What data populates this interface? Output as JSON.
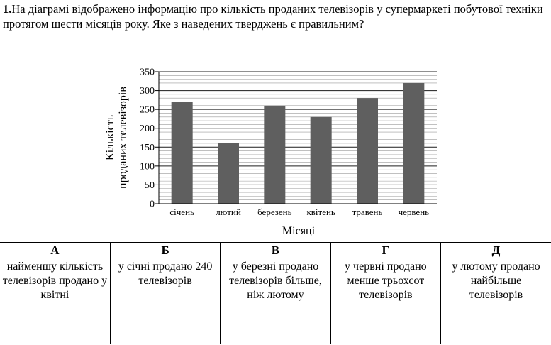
{
  "question": {
    "number": "1.",
    "text": "На діаграмі відображено інформацію про кількість проданих телевізорів у супермаркеті побутової техніки протягом шести місяців року. Яке з наведених тверджень є правильним?"
  },
  "chart_data": {
    "type": "bar",
    "categories": [
      "січень",
      "лютий",
      "березень",
      "квітень",
      "травень",
      "червень"
    ],
    "values": [
      270,
      160,
      260,
      230,
      280,
      320
    ],
    "xlabel": "Місяці",
    "ylabel_line1": "Кількість",
    "ylabel_line2": "проданих телевізорів",
    "ylim": [
      0,
      350
    ],
    "yticks": [
      0,
      50,
      100,
      150,
      200,
      250,
      300,
      350
    ],
    "minor_grid_step": 10,
    "bar_color": "#5f5f5f",
    "grid": true
  },
  "answers": [
    {
      "letter": "А",
      "text": "найменшу кількість телевізорів продано у квітні"
    },
    {
      "letter": "Б",
      "text": "у січні продано 240 телевізорів"
    },
    {
      "letter": "В",
      "text": "у березні продано телевізорів більше, ніж лютому"
    },
    {
      "letter": "Г",
      "text": "у червні продано менше трьохсот телевізорів"
    },
    {
      "letter": "Д",
      "text": "у лютому продано найбільше телевізорів"
    }
  ]
}
